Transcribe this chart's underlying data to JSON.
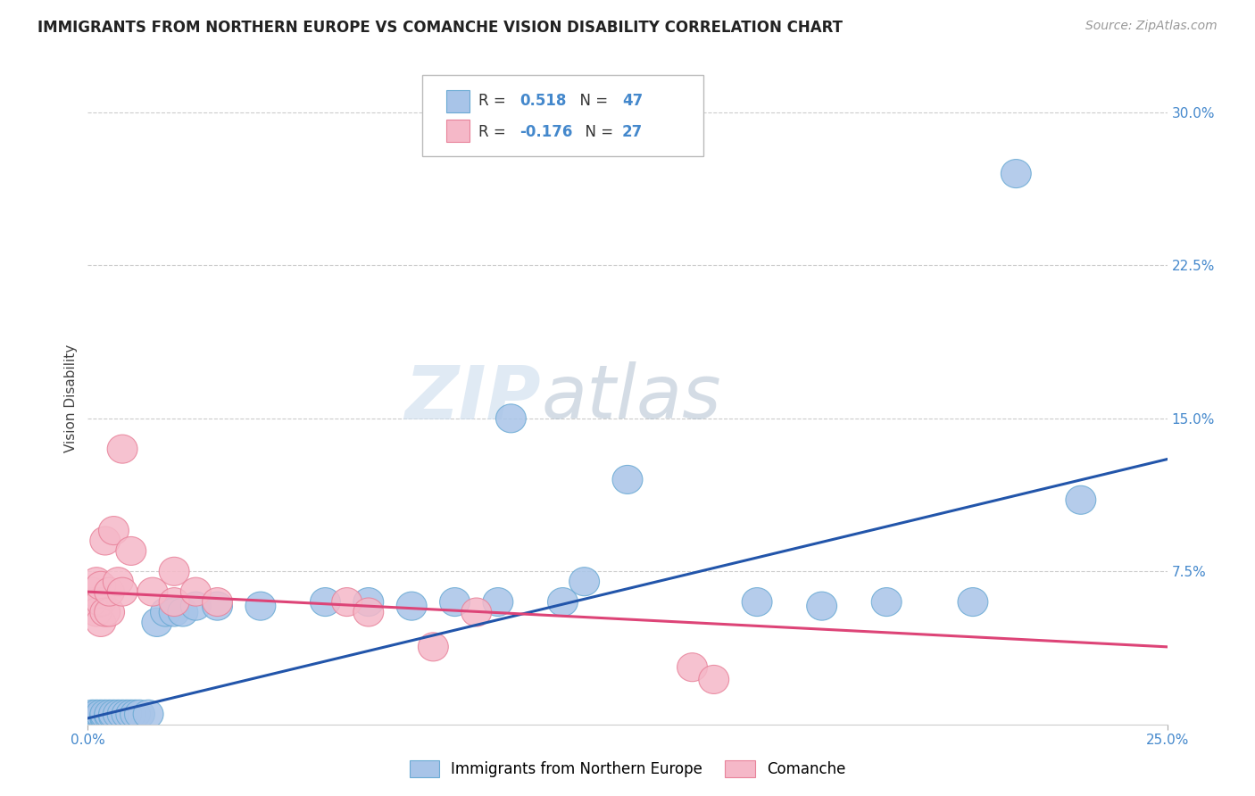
{
  "title": "IMMIGRANTS FROM NORTHERN EUROPE VS COMANCHE VISION DISABILITY CORRELATION CHART",
  "source": "Source: ZipAtlas.com",
  "ylabel_label": "Vision Disability",
  "xlim": [
    0.0,
    0.25
  ],
  "ylim": [
    0.0,
    0.32
  ],
  "x_ticks": [
    0.0,
    0.25
  ],
  "x_tick_labels": [
    "0.0%",
    "25.0%"
  ],
  "y_ticks": [
    0.075,
    0.15,
    0.225,
    0.3
  ],
  "y_tick_labels": [
    "7.5%",
    "15.0%",
    "22.5%",
    "30.0%"
  ],
  "legend_r_blue": "0.518",
  "legend_n_blue": "47",
  "legend_r_pink": "-0.176",
  "legend_n_pink": "27",
  "blue_scatter_color": "#a8c4e8",
  "blue_edge_color": "#6aaad4",
  "pink_scatter_color": "#f5b8c8",
  "pink_edge_color": "#e8829a",
  "blue_line_color": "#2255aa",
  "pink_line_color": "#dd4477",
  "text_blue_color": "#4488cc",
  "watermark_zip": "ZIP",
  "watermark_atlas": "atlas",
  "grid_color": "#cccccc",
  "blue_scatter": [
    [
      0.001,
      0.002
    ],
    [
      0.001,
      0.003
    ],
    [
      0.001,
      0.004
    ],
    [
      0.001,
      0.005
    ],
    [
      0.002,
      0.002
    ],
    [
      0.002,
      0.003
    ],
    [
      0.002,
      0.004
    ],
    [
      0.002,
      0.005
    ],
    [
      0.003,
      0.003
    ],
    [
      0.003,
      0.004
    ],
    [
      0.003,
      0.005
    ],
    [
      0.004,
      0.003
    ],
    [
      0.004,
      0.004
    ],
    [
      0.004,
      0.005
    ],
    [
      0.005,
      0.004
    ],
    [
      0.005,
      0.005
    ],
    [
      0.006,
      0.004
    ],
    [
      0.006,
      0.005
    ],
    [
      0.007,
      0.005
    ],
    [
      0.008,
      0.005
    ],
    [
      0.009,
      0.005
    ],
    [
      0.01,
      0.005
    ],
    [
      0.011,
      0.005
    ],
    [
      0.012,
      0.005
    ],
    [
      0.014,
      0.005
    ],
    [
      0.016,
      0.05
    ],
    [
      0.018,
      0.055
    ],
    [
      0.02,
      0.055
    ],
    [
      0.022,
      0.055
    ],
    [
      0.025,
      0.058
    ],
    [
      0.03,
      0.058
    ],
    [
      0.04,
      0.058
    ],
    [
      0.055,
      0.06
    ],
    [
      0.065,
      0.06
    ],
    [
      0.075,
      0.058
    ],
    [
      0.085,
      0.06
    ],
    [
      0.095,
      0.06
    ],
    [
      0.11,
      0.06
    ],
    [
      0.098,
      0.15
    ],
    [
      0.115,
      0.07
    ],
    [
      0.125,
      0.12
    ],
    [
      0.155,
      0.06
    ],
    [
      0.17,
      0.058
    ],
    [
      0.185,
      0.06
    ],
    [
      0.205,
      0.06
    ],
    [
      0.215,
      0.27
    ],
    [
      0.23,
      0.11
    ]
  ],
  "pink_scatter": [
    [
      0.001,
      0.06
    ],
    [
      0.001,
      0.065
    ],
    [
      0.002,
      0.055
    ],
    [
      0.002,
      0.07
    ],
    [
      0.003,
      0.05
    ],
    [
      0.003,
      0.06
    ],
    [
      0.003,
      0.068
    ],
    [
      0.004,
      0.055
    ],
    [
      0.004,
      0.09
    ],
    [
      0.005,
      0.055
    ],
    [
      0.005,
      0.065
    ],
    [
      0.006,
      0.095
    ],
    [
      0.007,
      0.07
    ],
    [
      0.008,
      0.065
    ],
    [
      0.008,
      0.135
    ],
    [
      0.01,
      0.085
    ],
    [
      0.015,
      0.065
    ],
    [
      0.02,
      0.06
    ],
    [
      0.02,
      0.075
    ],
    [
      0.025,
      0.065
    ],
    [
      0.03,
      0.06
    ],
    [
      0.06,
      0.06
    ],
    [
      0.065,
      0.055
    ],
    [
      0.08,
      0.038
    ],
    [
      0.09,
      0.055
    ],
    [
      0.14,
      0.028
    ],
    [
      0.145,
      0.022
    ]
  ],
  "blue_line_x": [
    0.0,
    0.25
  ],
  "blue_line_y": [
    0.003,
    0.13
  ],
  "pink_line_x": [
    0.0,
    0.25
  ],
  "pink_line_y": [
    0.065,
    0.038
  ],
  "figsize": [
    14.06,
    8.92
  ],
  "dpi": 100
}
